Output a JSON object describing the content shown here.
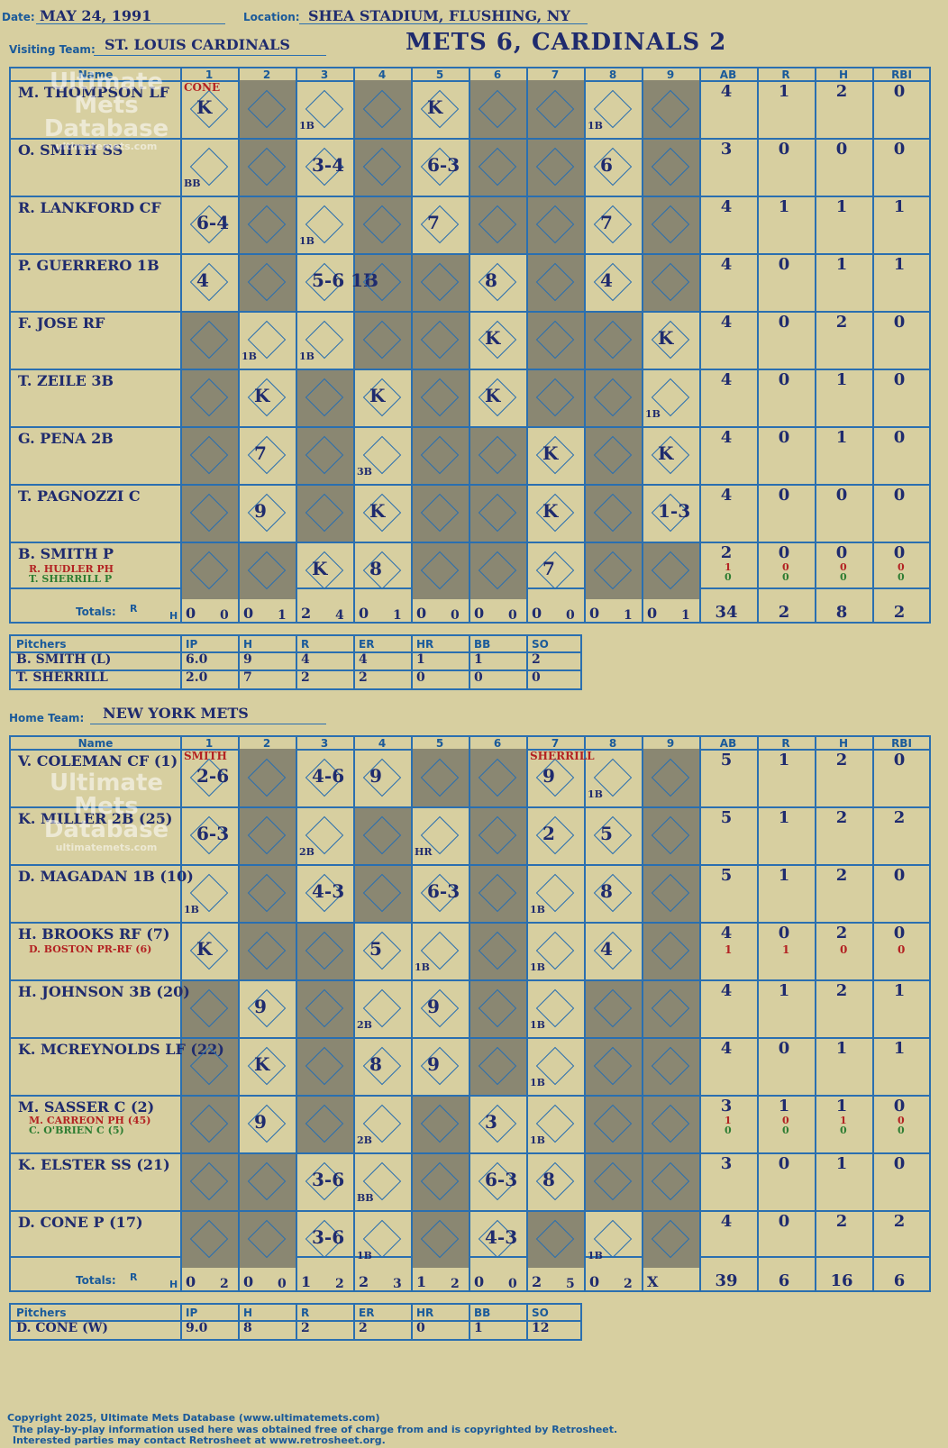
{
  "header": {
    "date_label": "Date:",
    "date": "MAY 24, 1991",
    "location_label": "Location:",
    "location": "SHEA STADIUM, FLUSHING, NY",
    "visiting_label": "Visiting Team:",
    "visiting_team": "ST. LOUIS CARDINALS",
    "home_label": "Home Team:",
    "home_team": "NEW YORK METS",
    "result_title": "METS 6, CARDINALS 2"
  },
  "columns": [
    "Name",
    "1",
    "2",
    "3",
    "4",
    "5",
    "6",
    "7",
    "8",
    "9",
    "AB",
    "R",
    "H",
    "RBI"
  ],
  "totals_label": "Totals:",
  "totals_r": "R",
  "totals_h": "H",
  "watermark": {
    "line1": "Ultimate",
    "line2": "Mets",
    "line3": "Database",
    "line4": "ultimatemets.com"
  },
  "visitors": {
    "players": [
      {
        "name": "M. THOMPSON LF",
        "ab": "4",
        "r": "1",
        "h": "2",
        "rbi": "0"
      },
      {
        "name": "O. SMITH SS",
        "ab": "3",
        "r": "0",
        "h": "0",
        "rbi": "0"
      },
      {
        "name": "R. LANKFORD CF",
        "ab": "4",
        "r": "1",
        "h": "1",
        "rbi": "1"
      },
      {
        "name": "P. GUERRERO 1B",
        "ab": "4",
        "r": "0",
        "h": "1",
        "rbi": "1"
      },
      {
        "name": "F. JOSE RF",
        "ab": "4",
        "r": "0",
        "h": "2",
        "rbi": "0"
      },
      {
        "name": "T. ZEILE 3B",
        "ab": "4",
        "r": "0",
        "h": "1",
        "rbi": "0"
      },
      {
        "name": "G. PENA 2B",
        "ab": "4",
        "r": "0",
        "h": "1",
        "rbi": "0"
      },
      {
        "name": "T. PAGNOZZI C",
        "ab": "4",
        "r": "0",
        "h": "0",
        "rbi": "0"
      },
      {
        "name": "B. SMITH P",
        "ab": "2",
        "r": "0",
        "h": "0",
        "rbi": "0"
      }
    ],
    "subs": [
      "R. HUDLER PH",
      "T. SHERRILL P"
    ],
    "sub_stats": [
      [
        "1",
        "0",
        "0",
        "0"
      ],
      [
        "0",
        "0",
        "0",
        "0"
      ]
    ],
    "pitcher_change_1": "CONE",
    "plays": [
      [
        "K",
        "",
        "1B",
        "",
        "K",
        "",
        "",
        "1B",
        ""
      ],
      [
        "BB",
        "",
        "3-4",
        "",
        "6-3",
        "",
        "",
        "6",
        ""
      ],
      [
        "6-4",
        "",
        "1B",
        "",
        "7",
        "",
        "",
        "7",
        ""
      ],
      [
        "4",
        "",
        "5-6 1B",
        "",
        "",
        "8",
        "",
        "4",
        ""
      ],
      [
        "",
        "1B",
        "1B",
        "",
        "",
        "K",
        "",
        "",
        "K"
      ],
      [
        "",
        "K",
        "",
        "K",
        "",
        "K",
        "",
        "",
        "1B"
      ],
      [
        "",
        "7",
        "",
        "3B",
        "",
        "",
        "K",
        "",
        "K"
      ],
      [
        "",
        "9",
        "",
        "K",
        "",
        "",
        "K",
        "",
        "1-3"
      ],
      [
        "",
        "",
        "K",
        "8",
        "",
        "",
        "7",
        "",
        ""
      ]
    ],
    "inning_totals": [
      [
        "0",
        "0"
      ],
      [
        "0",
        "1"
      ],
      [
        "2",
        "4"
      ],
      [
        "0",
        "1"
      ],
      [
        "0",
        "0"
      ],
      [
        "0",
        "0"
      ],
      [
        "0",
        "0"
      ],
      [
        "0",
        "1"
      ],
      [
        "0",
        "1"
      ]
    ],
    "totals": {
      "ab": "34",
      "r": "2",
      "h": "8",
      "rbi": "2"
    },
    "pitchers_header": [
      "Pitchers",
      "IP",
      "H",
      "R",
      "ER",
      "HR",
      "BB",
      "SO"
    ],
    "pitchers": [
      [
        "B. SMITH (L)",
        "6.0",
        "9",
        "4",
        "4",
        "1",
        "1",
        "2"
      ],
      [
        "T. SHERRILL",
        "2.0",
        "7",
        "2",
        "2",
        "0",
        "0",
        "0"
      ]
    ]
  },
  "home": {
    "players": [
      {
        "name": "V. COLEMAN CF (1)",
        "ab": "5",
        "r": "1",
        "h": "2",
        "rbi": "0"
      },
      {
        "name": "K. MILLER 2B (25)",
        "ab": "5",
        "r": "1",
        "h": "2",
        "rbi": "2"
      },
      {
        "name": "D. MAGADAN 1B (10)",
        "ab": "5",
        "r": "1",
        "h": "2",
        "rbi": "0"
      },
      {
        "name": "H. BROOKS RF (7)",
        "ab": "4",
        "r": "0",
        "h": "2",
        "rbi": "0"
      },
      {
        "name": "H. JOHNSON 3B (20)",
        "ab": "4",
        "r": "1",
        "h": "2",
        "rbi": "1"
      },
      {
        "name": "K. MCREYNOLDS LF (22)",
        "ab": "4",
        "r": "0",
        "h": "1",
        "rbi": "1"
      },
      {
        "name": "M. SASSER C (2)",
        "ab": "3",
        "r": "1",
        "h": "1",
        "rbi": "0"
      },
      {
        "name": "K. ELSTER SS (21)",
        "ab": "3",
        "r": "0",
        "h": "1",
        "rbi": "0"
      },
      {
        "name": "D. CONE P (17)",
        "ab": "4",
        "r": "0",
        "h": "2",
        "rbi": "2"
      }
    ],
    "sub_brooks": "D. BOSTON PR-RF (6)",
    "sub_brooks_stats": [
      "1",
      "1",
      "0",
      "0"
    ],
    "sub_sasser_1": "M. CARREON PH (45)",
    "sub_sasser_2": "C. O'BRIEN C (5)",
    "sub_sasser_stats": [
      [
        "1",
        "0",
        "1",
        "0"
      ],
      [
        "0",
        "0",
        "0",
        "0"
      ]
    ],
    "pitcher_change_1": "SMITH",
    "pitcher_change_7": "SHERRILL",
    "plays": [
      [
        "2-6",
        "",
        "4-6",
        "9",
        "",
        "",
        "9",
        "1B",
        ""
      ],
      [
        "6-3",
        "",
        "2B",
        "",
        "HR",
        "",
        "2",
        "5",
        ""
      ],
      [
        "1B",
        "",
        "4-3",
        "",
        "6-3",
        "",
        "1B",
        "8",
        ""
      ],
      [
        "K",
        "",
        "",
        "5",
        "1B",
        "",
        "1B",
        "4",
        ""
      ],
      [
        "",
        "9",
        "",
        "2B",
        "9",
        "",
        "1B",
        "",
        ""
      ],
      [
        "",
        "K",
        "",
        "8",
        "9",
        "",
        "1B",
        "",
        ""
      ],
      [
        "",
        "9",
        "",
        "2B",
        "",
        "3",
        "1B",
        "",
        ""
      ],
      [
        "",
        "",
        "3-6",
        "BB",
        "",
        "6-3",
        "8",
        "",
        ""
      ],
      [
        "",
        "",
        "3-6",
        "1B",
        "",
        "4-3",
        "",
        "1B",
        ""
      ]
    ],
    "inning_totals": [
      [
        "0",
        "2"
      ],
      [
        "0",
        "0"
      ],
      [
        "1",
        "2"
      ],
      [
        "2",
        "3"
      ],
      [
        "1",
        "2"
      ],
      [
        "0",
        "0"
      ],
      [
        "2",
        "5"
      ],
      [
        "0",
        "2"
      ],
      [
        "X",
        ""
      ]
    ],
    "totals": {
      "ab": "39",
      "r": "6",
      "h": "16",
      "rbi": "6"
    },
    "pitchers_header": [
      "Pitchers",
      "IP",
      "H",
      "R",
      "ER",
      "HR",
      "BB",
      "SO"
    ],
    "pitchers": [
      [
        "D. CONE (W)",
        "9.0",
        "8",
        "2",
        "2",
        "0",
        "1",
        "12"
      ]
    ]
  },
  "footer": {
    "line1": "Copyright 2025, Ultimate Mets Database (www.ultimatemets.com)",
    "line2": "The play-by-play information used here was obtained free of charge from and is copyrighted by Retrosheet.",
    "line3": "Interested parties may contact Retrosheet at www.retrosheet.org."
  },
  "colors": {
    "background": "#d7cfa0",
    "grid": "#2a6fb0",
    "shade": "#8a8772",
    "ink": "#1f2b6e",
    "score": "#1f2b6e",
    "red": "#b32222"
  }
}
